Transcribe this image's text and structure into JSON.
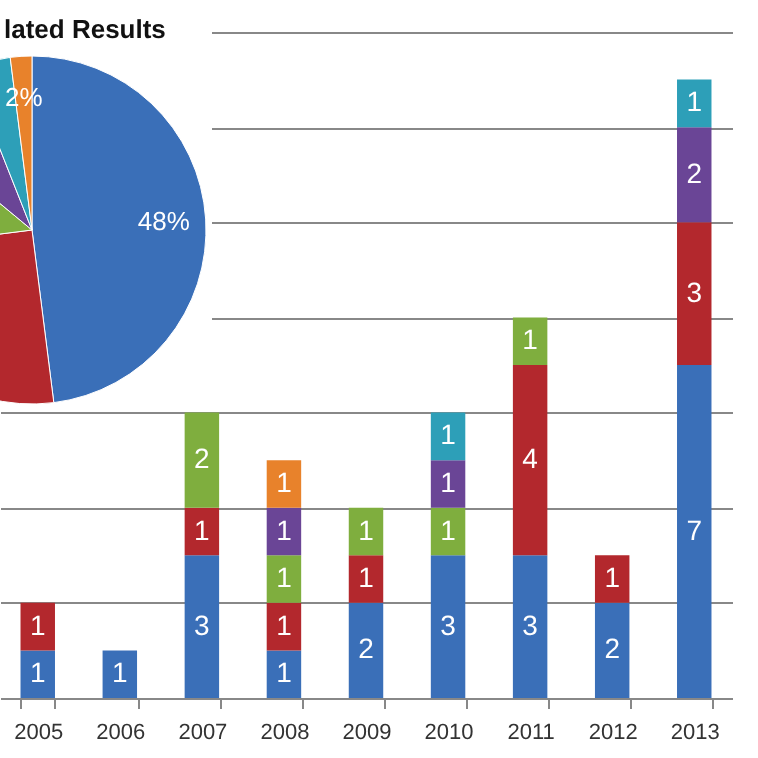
{
  "chart_data": [
    {
      "type": "pie",
      "title": "lated Results",
      "categories": [
        null,
        null,
        null,
        null,
        null,
        null
      ],
      "values": [
        48,
        25,
        13,
        8,
        4,
        2
      ],
      "colors": [
        "#3a6fb8",
        "#b3282d",
        "#7fae3e",
        "#6a4596",
        "#2d9fb8",
        "#e8822b"
      ],
      "value_labels": [
        "48%",
        null,
        null,
        null,
        null,
        "2%"
      ]
    },
    {
      "type": "bar",
      "stacked": true,
      "categories": [
        "2005",
        "2006",
        "2007",
        "2008",
        "2009",
        "2010",
        "2011",
        "2012",
        "2013"
      ],
      "series": [
        {
          "color": "#3a6fb8",
          "values": [
            1,
            1,
            3,
            1,
            2,
            3,
            3,
            2,
            7
          ]
        },
        {
          "color": "#b3282d",
          "values": [
            1,
            null,
            1,
            1,
            1,
            null,
            4,
            1,
            3
          ]
        },
        {
          "color": "#7fae3e",
          "values": [
            null,
            null,
            2,
            1,
            1,
            1,
            1,
            null,
            null
          ]
        },
        {
          "color": "#6a4596",
          "values": [
            null,
            null,
            null,
            1,
            null,
            1,
            null,
            null,
            2
          ]
        },
        {
          "color": "#2d9fb8",
          "values": [
            null,
            null,
            null,
            null,
            null,
            1,
            null,
            null,
            1
          ]
        },
        {
          "color": "#e8822b",
          "values": [
            null,
            null,
            null,
            1,
            null,
            null,
            null,
            null,
            null
          ]
        }
      ],
      "ylim": [
        0,
        14
      ],
      "yticks": [
        {
          "value": 0,
          "label": null
        },
        {
          "value": 2,
          "label": null
        },
        {
          "value": 4,
          "label": null
        },
        {
          "value": 6,
          "label": null
        },
        {
          "value": 8,
          "label": null
        },
        {
          "value": 10,
          "label": null
        },
        {
          "value": 12,
          "label": null
        },
        {
          "value": 14,
          "label": null
        }
      ],
      "tick_labels": "x",
      "grid": "y",
      "data_labels": true
    }
  ]
}
